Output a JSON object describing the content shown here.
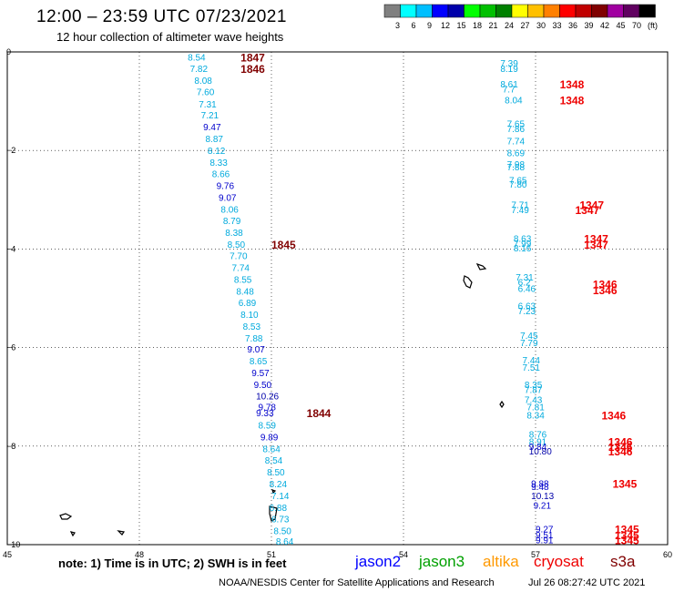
{
  "header": {
    "title": "12:00 – 23:59 UTC 07/23/2021",
    "subtitle": "12 hour collection of altimeter wave heights"
  },
  "colorbar": {
    "labels": [
      "3",
      "6",
      "9",
      "12",
      "15",
      "18",
      "21",
      "24",
      "27",
      "30",
      "33",
      "36",
      "39",
      "42",
      "45",
      "70",
      "(ft)"
    ],
    "colors": [
      "#808080",
      "#00ffff",
      "#00bfff",
      "#0000ff",
      "#0000aa",
      "#00ff00",
      "#00c000",
      "#008000",
      "#ffff00",
      "#ffc000",
      "#ff8000",
      "#ff0000",
      "#c00000",
      "#800000",
      "#a000a0",
      "#600060",
      "#000000"
    ]
  },
  "map": {
    "lon_range": [
      45,
      60
    ],
    "lat_range": [
      -10,
      0
    ],
    "x_ticks": [
      "45",
      "48",
      "51",
      "54",
      "57",
      "60"
    ],
    "y_ticks": [
      "0",
      "−2",
      "−4",
      "−6",
      "−8",
      "−10"
    ]
  },
  "passes": [
    {
      "name": "jason3-pass-left",
      "color": "#00aadd",
      "points": [
        {
          "lon": 49.1,
          "lat": -0.1,
          "v": "8.54",
          "c": "#00aadd"
        },
        {
          "lon": 49.15,
          "lat": -0.33,
          "v": "7.82",
          "c": "#00aadd"
        },
        {
          "lon": 49.25,
          "lat": -0.57,
          "v": "8.08",
          "c": "#00aadd"
        },
        {
          "lon": 49.3,
          "lat": -0.8,
          "v": "7.60",
          "c": "#00aadd"
        },
        {
          "lon": 49.35,
          "lat": -1.05,
          "v": "7.31",
          "c": "#00aadd"
        },
        {
          "lon": 49.4,
          "lat": -1.28,
          "v": "7.21",
          "c": "#00aadd"
        },
        {
          "lon": 49.45,
          "lat": -1.52,
          "v": "9.47",
          "c": "#0000cc"
        },
        {
          "lon": 49.5,
          "lat": -1.76,
          "v": "8.87",
          "c": "#00aadd"
        },
        {
          "lon": 49.55,
          "lat": -2.0,
          "v": "8.12",
          "c": "#00aadd"
        },
        {
          "lon": 49.6,
          "lat": -2.24,
          "v": "8.33",
          "c": "#00aadd"
        },
        {
          "lon": 49.65,
          "lat": -2.47,
          "v": "8.66",
          "c": "#00aadd"
        },
        {
          "lon": 49.75,
          "lat": -2.71,
          "v": "9.76",
          "c": "#0000cc"
        },
        {
          "lon": 49.8,
          "lat": -2.95,
          "v": "9.07",
          "c": "#0000cc"
        },
        {
          "lon": 49.85,
          "lat": -3.19,
          "v": "8.06",
          "c": "#00aadd"
        },
        {
          "lon": 49.9,
          "lat": -3.42,
          "v": "8.79",
          "c": "#00aadd"
        },
        {
          "lon": 49.95,
          "lat": -3.66,
          "v": "8.38",
          "c": "#00aadd"
        },
        {
          "lon": 50.0,
          "lat": -3.9,
          "v": "8.50",
          "c": "#00aadd"
        },
        {
          "lon": 50.05,
          "lat": -4.13,
          "v": "7.70",
          "c": "#00aadd"
        },
        {
          "lon": 50.1,
          "lat": -4.37,
          "v": "7.74",
          "c": "#00aadd"
        },
        {
          "lon": 50.15,
          "lat": -4.61,
          "v": "8.55",
          "c": "#00aadd"
        },
        {
          "lon": 50.2,
          "lat": -4.85,
          "v": "8.48",
          "c": "#00aadd"
        },
        {
          "lon": 50.25,
          "lat": -5.08,
          "v": "6.89",
          "c": "#00aadd"
        },
        {
          "lon": 50.3,
          "lat": -5.32,
          "v": "8.10",
          "c": "#00aadd"
        },
        {
          "lon": 50.35,
          "lat": -5.56,
          "v": "8.53",
          "c": "#00aadd"
        },
        {
          "lon": 50.4,
          "lat": -5.8,
          "v": "7.88",
          "c": "#00aadd"
        },
        {
          "lon": 50.45,
          "lat": -6.03,
          "v": "9.07",
          "c": "#0000cc"
        },
        {
          "lon": 50.5,
          "lat": -6.27,
          "v": "8.65",
          "c": "#00aadd"
        },
        {
          "lon": 50.55,
          "lat": -6.51,
          "v": "9.57",
          "c": "#0000cc"
        },
        {
          "lon": 50.6,
          "lat": -6.75,
          "v": "9.50",
          "c": "#0000cc"
        },
        {
          "lon": 50.65,
          "lat": -6.98,
          "v": "10.26",
          "c": "#0000aa"
        },
        {
          "lon": 50.7,
          "lat": -7.2,
          "v": "9.78",
          "c": "#0000cc"
        },
        {
          "lon": 50.65,
          "lat": -7.32,
          "v": "9.33",
          "c": "#0000cc"
        },
        {
          "lon": 50.7,
          "lat": -7.57,
          "v": "8.59",
          "c": "#00aadd"
        },
        {
          "lon": 50.75,
          "lat": -7.81,
          "v": "9.89",
          "c": "#0000cc"
        },
        {
          "lon": 50.8,
          "lat": -8.05,
          "v": "8.64",
          "c": "#00aadd"
        },
        {
          "lon": 50.85,
          "lat": -8.28,
          "v": "8.54",
          "c": "#00aadd"
        },
        {
          "lon": 50.9,
          "lat": -8.52,
          "v": "8.50",
          "c": "#00aadd"
        },
        {
          "lon": 50.95,
          "lat": -8.76,
          "v": "8.24",
          "c": "#00aadd"
        },
        {
          "lon": 51.0,
          "lat": -9.0,
          "v": "7.14",
          "c": "#00aadd"
        },
        {
          "lon": 50.95,
          "lat": -9.24,
          "v": "6.88",
          "c": "#00aadd"
        },
        {
          "lon": 51.0,
          "lat": -9.47,
          "v": "6.73",
          "c": "#00aadd"
        },
        {
          "lon": 51.05,
          "lat": -9.71,
          "v": "8.50",
          "c": "#00aadd"
        },
        {
          "lon": 51.1,
          "lat": -9.93,
          "v": "8.64",
          "c": "#00aadd"
        }
      ]
    },
    {
      "name": "jason3-pass-right",
      "color": "#00aadd",
      "points": [
        {
          "lon": 56.2,
          "lat": -0.22,
          "v": "7.39",
          "c": "#00aadd"
        },
        {
          "lon": 56.2,
          "lat": -0.33,
          "v": "8.19",
          "c": "#00aadd"
        },
        {
          "lon": 56.2,
          "lat": -0.65,
          "v": "8.61",
          "c": "#00aadd"
        },
        {
          "lon": 56.25,
          "lat": -0.75,
          "v": "7.7",
          "c": "#00aadd"
        },
        {
          "lon": 56.3,
          "lat": -0.97,
          "v": "8.04",
          "c": "#00aadd"
        },
        {
          "lon": 56.35,
          "lat": -1.45,
          "v": "7.65",
          "c": "#00aadd"
        },
        {
          "lon": 56.35,
          "lat": -1.55,
          "v": "7.86",
          "c": "#00aadd"
        },
        {
          "lon": 56.35,
          "lat": -1.8,
          "v": "7.74",
          "c": "#00aadd"
        },
        {
          "lon": 56.35,
          "lat": -2.04,
          "v": "8.69",
          "c": "#00aadd"
        },
        {
          "lon": 56.35,
          "lat": -2.27,
          "v": "7.98",
          "c": "#00aadd"
        },
        {
          "lon": 56.35,
          "lat": -2.33,
          "v": "7.88",
          "c": "#00aadd"
        },
        {
          "lon": 56.4,
          "lat": -2.6,
          "v": "7.65",
          "c": "#00aadd"
        },
        {
          "lon": 56.4,
          "lat": -2.68,
          "v": "7.80",
          "c": "#00aadd"
        },
        {
          "lon": 56.45,
          "lat": -3.1,
          "v": "7.71",
          "c": "#00aadd"
        },
        {
          "lon": 56.45,
          "lat": -3.2,
          "v": "7.49",
          "c": "#00aadd"
        },
        {
          "lon": 56.5,
          "lat": -3.78,
          "v": "8.63",
          "c": "#00aadd"
        },
        {
          "lon": 56.5,
          "lat": -3.88,
          "v": "7.99",
          "c": "#00aadd"
        },
        {
          "lon": 56.5,
          "lat": -3.97,
          "v": "8.16",
          "c": "#00aadd"
        },
        {
          "lon": 56.55,
          "lat": -4.57,
          "v": "7.31",
          "c": "#00aadd"
        },
        {
          "lon": 56.6,
          "lat": -4.67,
          "v": "6.2",
          "c": "#00aadd"
        },
        {
          "lon": 56.6,
          "lat": -4.8,
          "v": "6.46",
          "c": "#00aadd"
        },
        {
          "lon": 56.6,
          "lat": -5.15,
          "v": "6.63",
          "c": "#00aadd"
        },
        {
          "lon": 56.6,
          "lat": -5.25,
          "v": "7.23",
          "c": "#00aadd"
        },
        {
          "lon": 56.65,
          "lat": -5.75,
          "v": "7.45",
          "c": "#00aadd"
        },
        {
          "lon": 56.65,
          "lat": -5.9,
          "v": "7.79",
          "c": "#00aadd"
        },
        {
          "lon": 56.7,
          "lat": -6.25,
          "v": "7.44",
          "c": "#00aadd"
        },
        {
          "lon": 56.7,
          "lat": -6.4,
          "v": "7.51",
          "c": "#00aadd"
        },
        {
          "lon": 56.75,
          "lat": -6.75,
          "v": "8.35",
          "c": "#00aadd"
        },
        {
          "lon": 56.75,
          "lat": -6.85,
          "v": "7.87",
          "c": "#00aadd"
        },
        {
          "lon": 56.75,
          "lat": -7.05,
          "v": "7.43",
          "c": "#00aadd"
        },
        {
          "lon": 56.8,
          "lat": -7.2,
          "v": "7.81",
          "c": "#00aadd"
        },
        {
          "lon": 56.8,
          "lat": -7.37,
          "v": "8.34",
          "c": "#00aadd"
        },
        {
          "lon": 56.85,
          "lat": -7.75,
          "v": "8.76",
          "c": "#00aadd"
        },
        {
          "lon": 56.85,
          "lat": -7.9,
          "v": "8.91",
          "c": "#00aadd"
        },
        {
          "lon": 56.85,
          "lat": -8.0,
          "v": "9.84",
          "c": "#0000cc"
        },
        {
          "lon": 56.85,
          "lat": -8.1,
          "v": "10.80",
          "c": "#0000aa"
        },
        {
          "lon": 56.9,
          "lat": -8.75,
          "v": "9.88",
          "c": "#0000cc"
        },
        {
          "lon": 56.9,
          "lat": -8.82,
          "v": "9.48",
          "c": "#0000cc"
        },
        {
          "lon": 56.9,
          "lat": -9.0,
          "v": "10.13",
          "c": "#0000aa"
        },
        {
          "lon": 56.95,
          "lat": -9.2,
          "v": "9.21",
          "c": "#0000cc"
        },
        {
          "lon": 57.0,
          "lat": -9.68,
          "v": "9.27",
          "c": "#0000cc"
        },
        {
          "lon": 57.0,
          "lat": -9.8,
          "v": "9.51",
          "c": "#0000cc"
        },
        {
          "lon": 57.0,
          "lat": -9.9,
          "v": "9.91",
          "c": "#0000cc"
        }
      ]
    }
  ],
  "time_labels": [
    {
      "lon": 50.3,
      "lat": -0.1,
      "t": "1847",
      "c": "#800000"
    },
    {
      "lon": 50.3,
      "lat": -0.33,
      "t": "1846",
      "c": "#800000"
    },
    {
      "lon": 51.0,
      "lat": -3.9,
      "t": "1845",
      "c": "#800000"
    },
    {
      "lon": 51.8,
      "lat": -7.32,
      "t": "1844",
      "c": "#800000"
    },
    {
      "lon": 57.55,
      "lat": -0.65,
      "t": "1348",
      "c": "#ee0000"
    },
    {
      "lon": 57.55,
      "lat": -0.97,
      "t": "1348",
      "c": "#ee0000"
    },
    {
      "lon": 58.0,
      "lat": -3.1,
      "t": "1347",
      "c": "#ee0000"
    },
    {
      "lon": 57.9,
      "lat": -3.2,
      "t": "1347",
      "c": "#ee0000"
    },
    {
      "lon": 58.1,
      "lat": -3.78,
      "t": "1347",
      "c": "#ee0000"
    },
    {
      "lon": 58.1,
      "lat": -3.9,
      "t": "1347",
      "c": "#ee0000"
    },
    {
      "lon": 58.3,
      "lat": -4.7,
      "t": "1346",
      "c": "#ee0000"
    },
    {
      "lon": 58.3,
      "lat": -4.82,
      "t": "1346",
      "c": "#ee0000"
    },
    {
      "lon": 58.5,
      "lat": -7.37,
      "t": "1346",
      "c": "#ee0000"
    },
    {
      "lon": 58.65,
      "lat": -7.9,
      "t": "1346",
      "c": "#ee0000"
    },
    {
      "lon": 58.65,
      "lat": -8.0,
      "t": "1346",
      "c": "#ee0000"
    },
    {
      "lon": 58.65,
      "lat": -8.1,
      "t": "1346",
      "c": "#ee0000"
    },
    {
      "lon": 58.75,
      "lat": -8.75,
      "t": "1345",
      "c": "#ee0000"
    },
    {
      "lon": 58.8,
      "lat": -9.68,
      "t": "1345",
      "c": "#ee0000"
    },
    {
      "lon": 58.8,
      "lat": -9.8,
      "t": "1345",
      "c": "#ee0000"
    },
    {
      "lon": 58.8,
      "lat": -9.9,
      "t": "1345",
      "c": "#ee0000"
    }
  ],
  "footer": {
    "note": "note:  1) Time is in UTC;  2) SWH is in feet",
    "satellites": [
      {
        "name": "jason2",
        "color": "#0000ff"
      },
      {
        "name": "jason3",
        "color": "#00a000"
      },
      {
        "name": "altika",
        "color": "#ff9900"
      },
      {
        "name": "cryosat",
        "color": "#ee0000"
      },
      {
        "name": "s3a",
        "color": "#800000"
      }
    ],
    "credit": "NOAA/NESDIS Center for Satellite Applications and Research",
    "timestamp": "Jul 26 08:27:42 UTC 2021"
  }
}
